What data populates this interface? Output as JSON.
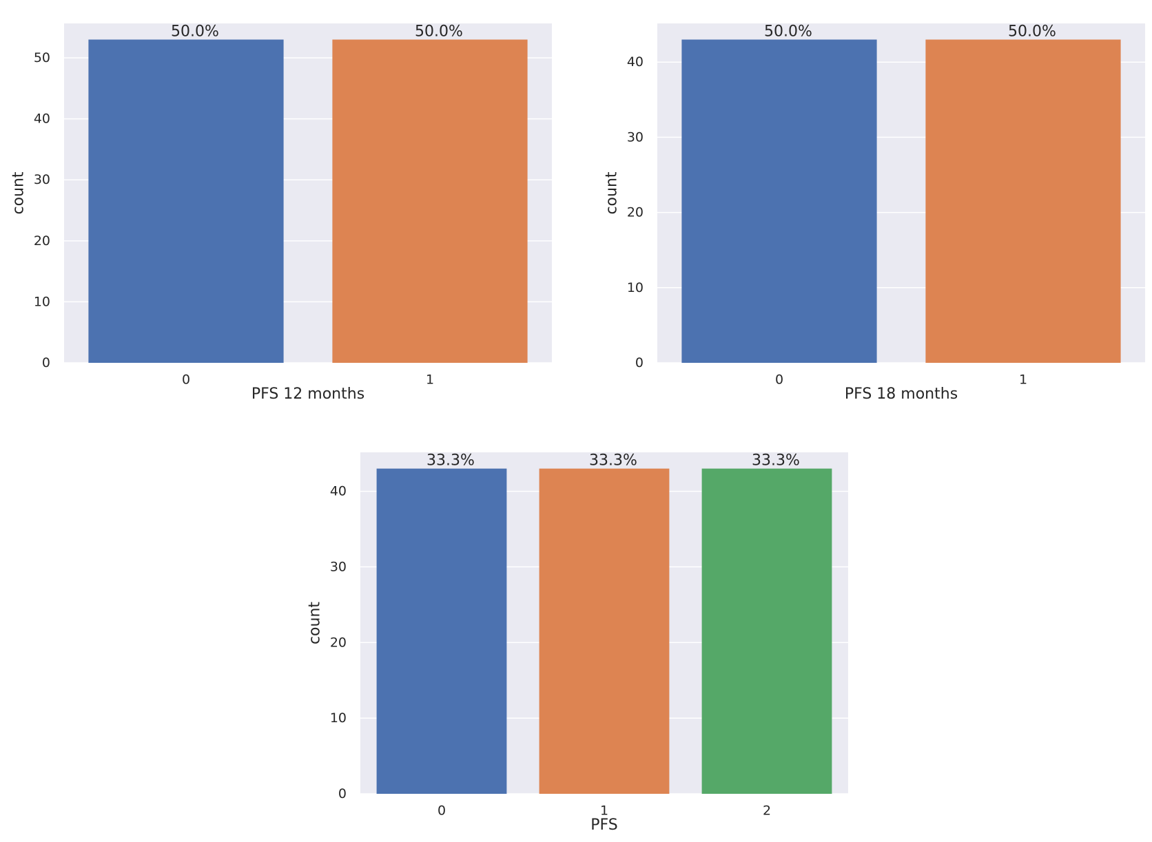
{
  "chart_data": [
    {
      "type": "bar",
      "categories": [
        "0",
        "1"
      ],
      "values": [
        53,
        53
      ],
      "data_labels": [
        "50.0%",
        "50.0%"
      ],
      "bar_colors": [
        "#4c72b0",
        "#dd8452"
      ],
      "title": "",
      "xlabel": "PFS 12 months",
      "ylabel": "count",
      "ylim": [
        0,
        55.65
      ],
      "yticks": [
        0,
        10,
        20,
        30,
        40,
        50
      ],
      "grid": true
    },
    {
      "type": "bar",
      "categories": [
        "0",
        "1"
      ],
      "values": [
        43,
        43
      ],
      "data_labels": [
        "50.0%",
        "50.0%"
      ],
      "bar_colors": [
        "#4c72b0",
        "#dd8452"
      ],
      "title": "",
      "xlabel": "PFS 18 months",
      "ylabel": "count",
      "ylim": [
        0,
        45.15
      ],
      "yticks": [
        0,
        10,
        20,
        30,
        40
      ],
      "grid": true
    },
    {
      "type": "bar",
      "categories": [
        "0",
        "1",
        "2"
      ],
      "values": [
        43,
        43,
        43
      ],
      "data_labels": [
        "33.3%",
        "33.3%",
        "33.3%"
      ],
      "bar_colors": [
        "#4c72b0",
        "#dd8452",
        "#55a868"
      ],
      "title": "",
      "xlabel": "PFS",
      "ylabel": "count",
      "ylim": [
        0,
        45.15
      ],
      "yticks": [
        0,
        10,
        20,
        30,
        40
      ],
      "grid": true
    }
  ],
  "colors": {
    "plot_background": "#eaeaf2",
    "grid": "#ffffff",
    "text": "#262626",
    "series_0": "#4c72b0",
    "series_1": "#dd8452",
    "series_2": "#55a868"
  }
}
